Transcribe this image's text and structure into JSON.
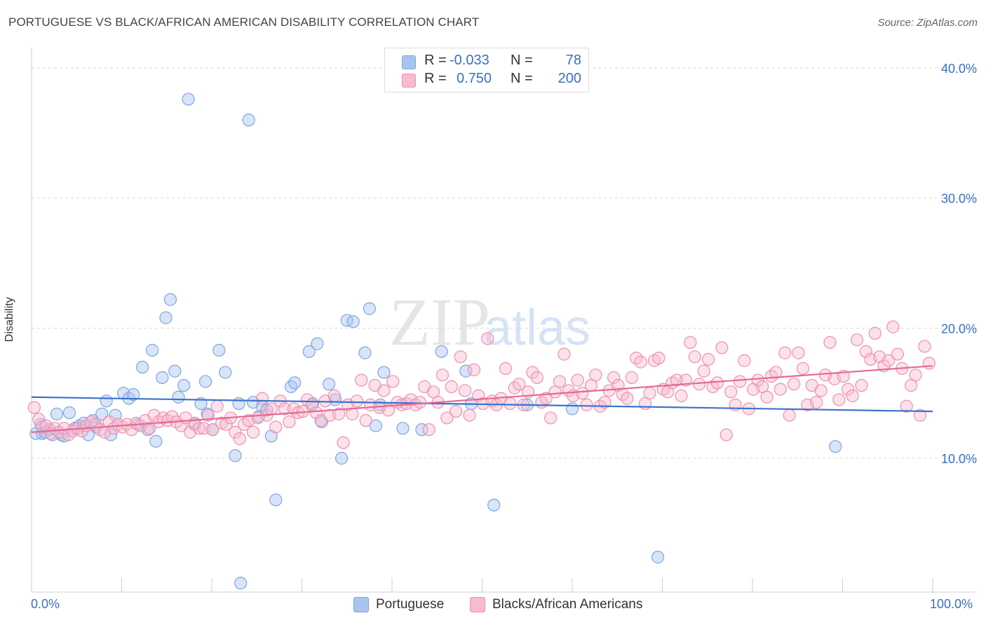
{
  "title": "PORTUGUESE VS BLACK/AFRICAN AMERICAN DISABILITY CORRELATION CHART",
  "source": "Source: ZipAtlas.com",
  "watermark": {
    "zip": "ZIP",
    "atlas": "atlas"
  },
  "legend": {
    "rows": [
      {
        "r_label": "R =",
        "r_value": "-0.033",
        "n_label": "N =",
        "n_value": "78",
        "color": "#a9c4ee",
        "border": "#7ea6e0",
        "text_color": "#3a6fc4"
      },
      {
        "r_label": "R =",
        "r_value": "0.750",
        "n_label": "N =",
        "n_value": "200",
        "color": "#f7bcd0",
        "border": "#ee8fb0",
        "text_color": "#3a6fc4"
      }
    ]
  },
  "bottom_legend": [
    {
      "label": "Portuguese",
      "color": "#a9c4ee",
      "border": "#7ea6e0"
    },
    {
      "label": "Blacks/African Americans",
      "color": "#f7bcd0",
      "border": "#ee8fb0"
    }
  ],
  "x_min_label": "0.0%",
  "x_max_label": "100.0%",
  "chart_data": {
    "type": "scatter",
    "title": "PORTUGUESE VS BLACK/AFRICAN AMERICAN DISABILITY CORRELATION CHART",
    "xlabel": "",
    "ylabel": "Disability",
    "xlim": [
      0,
      100
    ],
    "ylim": [
      0,
      40
    ],
    "y_ticks": [
      10,
      20,
      30,
      40
    ],
    "y_tick_labels": [
      "10.0%",
      "20.0%",
      "30.0%",
      "40.0%"
    ],
    "x_tick_labels": [
      "0.0%",
      "100.0%"
    ],
    "grid": "horizontal dashed",
    "legend_position": "top-center",
    "series": [
      {
        "name": "Portuguese",
        "color": "#7ea6e0",
        "fill": "#a9c4ee",
        "trend": {
          "x": [
            0,
            100
          ],
          "y": [
            14.7,
            13.6
          ]
        },
        "points": [
          [
            0.5,
            11.9
          ],
          [
            1.0,
            12.6
          ],
          [
            1.2,
            11.9
          ],
          [
            1.5,
            12.0
          ],
          [
            2.0,
            12.2
          ],
          [
            2.3,
            11.8
          ],
          [
            2.8,
            13.4
          ],
          [
            3.3,
            11.8
          ],
          [
            3.6,
            11.7
          ],
          [
            4.2,
            13.5
          ],
          [
            4.8,
            12.3
          ],
          [
            5.3,
            12.5
          ],
          [
            5.8,
            12.7
          ],
          [
            6.3,
            11.8
          ],
          [
            6.8,
            12.9
          ],
          [
            7.2,
            12.4
          ],
          [
            7.8,
            13.4
          ],
          [
            8.3,
            14.4
          ],
          [
            8.8,
            11.8
          ],
          [
            9.3,
            13.3
          ],
          [
            10.2,
            15.0
          ],
          [
            10.8,
            14.6
          ],
          [
            11.3,
            14.9
          ],
          [
            11.8,
            12.6
          ],
          [
            12.3,
            17.0
          ],
          [
            12.9,
            12.2
          ],
          [
            13.4,
            18.3
          ],
          [
            13.8,
            11.3
          ],
          [
            14.5,
            16.2
          ],
          [
            14.9,
            20.8
          ],
          [
            15.4,
            22.2
          ],
          [
            15.9,
            16.7
          ],
          [
            16.3,
            14.7
          ],
          [
            16.9,
            15.6
          ],
          [
            17.4,
            37.6
          ],
          [
            18.1,
            12.6
          ],
          [
            18.8,
            14.2
          ],
          [
            19.3,
            15.9
          ],
          [
            19.5,
            13.4
          ],
          [
            20.1,
            12.2
          ],
          [
            20.8,
            18.3
          ],
          [
            21.5,
            16.6
          ],
          [
            22.6,
            10.2
          ],
          [
            23.0,
            14.2
          ],
          [
            23.2,
            0.4
          ],
          [
            24.1,
            36.0
          ],
          [
            24.6,
            14.3
          ],
          [
            25.2,
            13.2
          ],
          [
            25.6,
            14.0
          ],
          [
            26.1,
            13.7
          ],
          [
            26.6,
            11.7
          ],
          [
            27.1,
            6.8
          ],
          [
            28.8,
            15.5
          ],
          [
            29.2,
            15.8
          ],
          [
            30.8,
            18.2
          ],
          [
            31.2,
            14.2
          ],
          [
            31.7,
            18.8
          ],
          [
            32.2,
            12.8
          ],
          [
            33.0,
            15.7
          ],
          [
            33.7,
            14.5
          ],
          [
            34.4,
            10.0
          ],
          [
            35.0,
            20.6
          ],
          [
            35.7,
            20.5
          ],
          [
            37.0,
            18.1
          ],
          [
            37.5,
            21.5
          ],
          [
            38.2,
            12.5
          ],
          [
            38.7,
            14.1
          ],
          [
            39.1,
            16.6
          ],
          [
            41.2,
            12.3
          ],
          [
            43.3,
            12.2
          ],
          [
            45.5,
            18.2
          ],
          [
            48.2,
            16.7
          ],
          [
            48.8,
            14.2
          ],
          [
            51.3,
            6.4
          ],
          [
            69.5,
            2.4
          ],
          [
            89.2,
            10.9
          ],
          [
            55.0,
            14.1
          ],
          [
            60.0,
            13.8
          ]
        ]
      },
      {
        "name": "Blacks/African Americans",
        "color": "#ee8fb0",
        "fill": "#f7bcd0",
        "trend": {
          "x": [
            0,
            100
          ],
          "y": [
            12.0,
            17.1
          ]
        },
        "points": [
          [
            0.3,
            13.9
          ],
          [
            0.8,
            13.0
          ],
          [
            1.2,
            12.4
          ],
          [
            1.6,
            12.5
          ],
          [
            2.1,
            11.9
          ],
          [
            2.6,
            12.3
          ],
          [
            3.1,
            12.0
          ],
          [
            3.6,
            12.3
          ],
          [
            4.1,
            11.8
          ],
          [
            4.6,
            12.1
          ],
          [
            5.1,
            12.3
          ],
          [
            5.6,
            12.1
          ],
          [
            6.1,
            12.5
          ],
          [
            6.6,
            12.8
          ],
          [
            7.1,
            12.6
          ],
          [
            7.6,
            12.2
          ],
          [
            8.1,
            12.0
          ],
          [
            8.6,
            12.8
          ],
          [
            9.1,
            12.3
          ],
          [
            9.6,
            12.6
          ],
          [
            10.1,
            12.4
          ],
          [
            10.6,
            12.6
          ],
          [
            11.1,
            12.2
          ],
          [
            11.6,
            12.7
          ],
          [
            12.1,
            12.5
          ],
          [
            12.6,
            12.9
          ],
          [
            13.1,
            12.3
          ],
          [
            13.6,
            13.3
          ],
          [
            14.1,
            12.8
          ],
          [
            14.6,
            13.1
          ],
          [
            15.1,
            12.9
          ],
          [
            15.6,
            13.2
          ],
          [
            16.1,
            12.8
          ],
          [
            16.6,
            12.5
          ],
          [
            17.1,
            13.1
          ],
          [
            17.6,
            12.0
          ],
          [
            18.1,
            12.7
          ],
          [
            18.6,
            12.3
          ],
          [
            19.1,
            12.3
          ],
          [
            19.6,
            13.3
          ],
          [
            20.1,
            12.2
          ],
          [
            20.6,
            14.0
          ],
          [
            21.1,
            12.7
          ],
          [
            21.6,
            12.6
          ],
          [
            22.1,
            13.1
          ],
          [
            22.6,
            12.0
          ],
          [
            23.1,
            11.5
          ],
          [
            23.6,
            12.6
          ],
          [
            24.1,
            12.9
          ],
          [
            24.6,
            12.0
          ],
          [
            25.1,
            13.1
          ],
          [
            25.6,
            14.6
          ],
          [
            26.1,
            13.3
          ],
          [
            26.6,
            13.8
          ],
          [
            27.1,
            12.4
          ],
          [
            27.6,
            14.4
          ],
          [
            28.1,
            13.8
          ],
          [
            28.6,
            12.8
          ],
          [
            29.1,
            13.8
          ],
          [
            29.6,
            13.5
          ],
          [
            30.1,
            13.6
          ],
          [
            30.6,
            14.5
          ],
          [
            31.1,
            14.1
          ],
          [
            31.6,
            13.5
          ],
          [
            32.1,
            12.9
          ],
          [
            32.6,
            14.4
          ],
          [
            33.1,
            13.3
          ],
          [
            33.6,
            14.8
          ],
          [
            34.1,
            13.4
          ],
          [
            34.6,
            11.2
          ],
          [
            35.1,
            14.1
          ],
          [
            35.6,
            13.4
          ],
          [
            36.1,
            14.4
          ],
          [
            36.6,
            16.0
          ],
          [
            37.1,
            12.9
          ],
          [
            37.6,
            14.1
          ],
          [
            38.1,
            15.6
          ],
          [
            38.6,
            13.9
          ],
          [
            39.1,
            15.2
          ],
          [
            39.6,
            13.7
          ],
          [
            40.1,
            15.9
          ],
          [
            40.6,
            14.3
          ],
          [
            41.1,
            14.1
          ],
          [
            41.6,
            14.2
          ],
          [
            42.1,
            14.5
          ],
          [
            42.6,
            14.1
          ],
          [
            43.1,
            14.3
          ],
          [
            43.6,
            15.5
          ],
          [
            44.1,
            12.2
          ],
          [
            44.6,
            15.1
          ],
          [
            45.1,
            14.3
          ],
          [
            45.6,
            16.4
          ],
          [
            46.1,
            13.1
          ],
          [
            46.6,
            15.5
          ],
          [
            47.1,
            13.6
          ],
          [
            47.6,
            17.8
          ],
          [
            48.1,
            15.2
          ],
          [
            48.6,
            13.3
          ],
          [
            49.1,
            16.8
          ],
          [
            49.6,
            14.8
          ],
          [
            50.1,
            14.2
          ],
          [
            50.6,
            19.2
          ],
          [
            51.1,
            14.4
          ],
          [
            51.6,
            14.1
          ],
          [
            52.1,
            14.6
          ],
          [
            52.6,
            16.9
          ],
          [
            53.1,
            14.2
          ],
          [
            53.6,
            15.4
          ],
          [
            54.1,
            15.7
          ],
          [
            54.6,
            14.1
          ],
          [
            55.1,
            15.1
          ],
          [
            55.6,
            16.6
          ],
          [
            56.1,
            16.2
          ],
          [
            56.6,
            14.3
          ],
          [
            57.1,
            14.6
          ],
          [
            57.6,
            13.1
          ],
          [
            58.1,
            15.1
          ],
          [
            58.6,
            15.9
          ],
          [
            59.1,
            18.0
          ],
          [
            59.6,
            15.2
          ],
          [
            60.1,
            14.8
          ],
          [
            60.6,
            16.0
          ],
          [
            61.1,
            15.0
          ],
          [
            61.6,
            14.1
          ],
          [
            62.1,
            15.6
          ],
          [
            62.6,
            16.4
          ],
          [
            63.1,
            14.0
          ],
          [
            63.6,
            14.3
          ],
          [
            64.1,
            15.2
          ],
          [
            64.6,
            16.2
          ],
          [
            65.1,
            15.6
          ],
          [
            65.6,
            14.9
          ],
          [
            66.1,
            14.6
          ],
          [
            66.6,
            16.2
          ],
          [
            67.1,
            17.7
          ],
          [
            67.6,
            17.4
          ],
          [
            68.1,
            14.2
          ],
          [
            68.6,
            15.0
          ],
          [
            69.1,
            17.5
          ],
          [
            69.6,
            17.7
          ],
          [
            70.1,
            15.3
          ],
          [
            70.6,
            15.1
          ],
          [
            71.1,
            15.8
          ],
          [
            71.6,
            16.0
          ],
          [
            72.1,
            14.8
          ],
          [
            72.6,
            16.0
          ],
          [
            73.1,
            18.9
          ],
          [
            73.6,
            17.8
          ],
          [
            74.1,
            15.7
          ],
          [
            74.6,
            16.7
          ],
          [
            75.1,
            17.6
          ],
          [
            75.6,
            15.5
          ],
          [
            76.1,
            15.8
          ],
          [
            76.6,
            18.5
          ],
          [
            77.1,
            11.8
          ],
          [
            77.6,
            15.1
          ],
          [
            78.1,
            14.1
          ],
          [
            78.6,
            15.9
          ],
          [
            79.1,
            17.5
          ],
          [
            79.6,
            13.8
          ],
          [
            80.1,
            15.3
          ],
          [
            80.6,
            16.0
          ],
          [
            81.1,
            15.5
          ],
          [
            81.6,
            14.7
          ],
          [
            82.1,
            16.3
          ],
          [
            82.6,
            16.6
          ],
          [
            83.1,
            15.3
          ],
          [
            83.6,
            18.1
          ],
          [
            84.1,
            13.3
          ],
          [
            84.6,
            15.7
          ],
          [
            85.1,
            18.1
          ],
          [
            85.6,
            16.9
          ],
          [
            86.1,
            14.1
          ],
          [
            86.6,
            15.6
          ],
          [
            87.1,
            14.3
          ],
          [
            87.6,
            15.2
          ],
          [
            88.1,
            16.4
          ],
          [
            88.6,
            18.9
          ],
          [
            89.1,
            16.1
          ],
          [
            89.6,
            14.5
          ],
          [
            90.1,
            16.3
          ],
          [
            90.6,
            15.3
          ],
          [
            91.1,
            14.8
          ],
          [
            91.6,
            19.1
          ],
          [
            92.1,
            15.6
          ],
          [
            92.6,
            18.2
          ],
          [
            93.1,
            17.6
          ],
          [
            93.6,
            19.6
          ],
          [
            94.1,
            17.8
          ],
          [
            94.6,
            17.1
          ],
          [
            95.1,
            17.5
          ],
          [
            95.6,
            20.1
          ],
          [
            96.1,
            18.0
          ],
          [
            96.6,
            16.9
          ],
          [
            97.1,
            14.0
          ],
          [
            97.6,
            15.6
          ],
          [
            98.1,
            16.4
          ],
          [
            98.6,
            13.3
          ],
          [
            99.1,
            18.6
          ],
          [
            99.6,
            17.3
          ]
        ]
      }
    ]
  }
}
